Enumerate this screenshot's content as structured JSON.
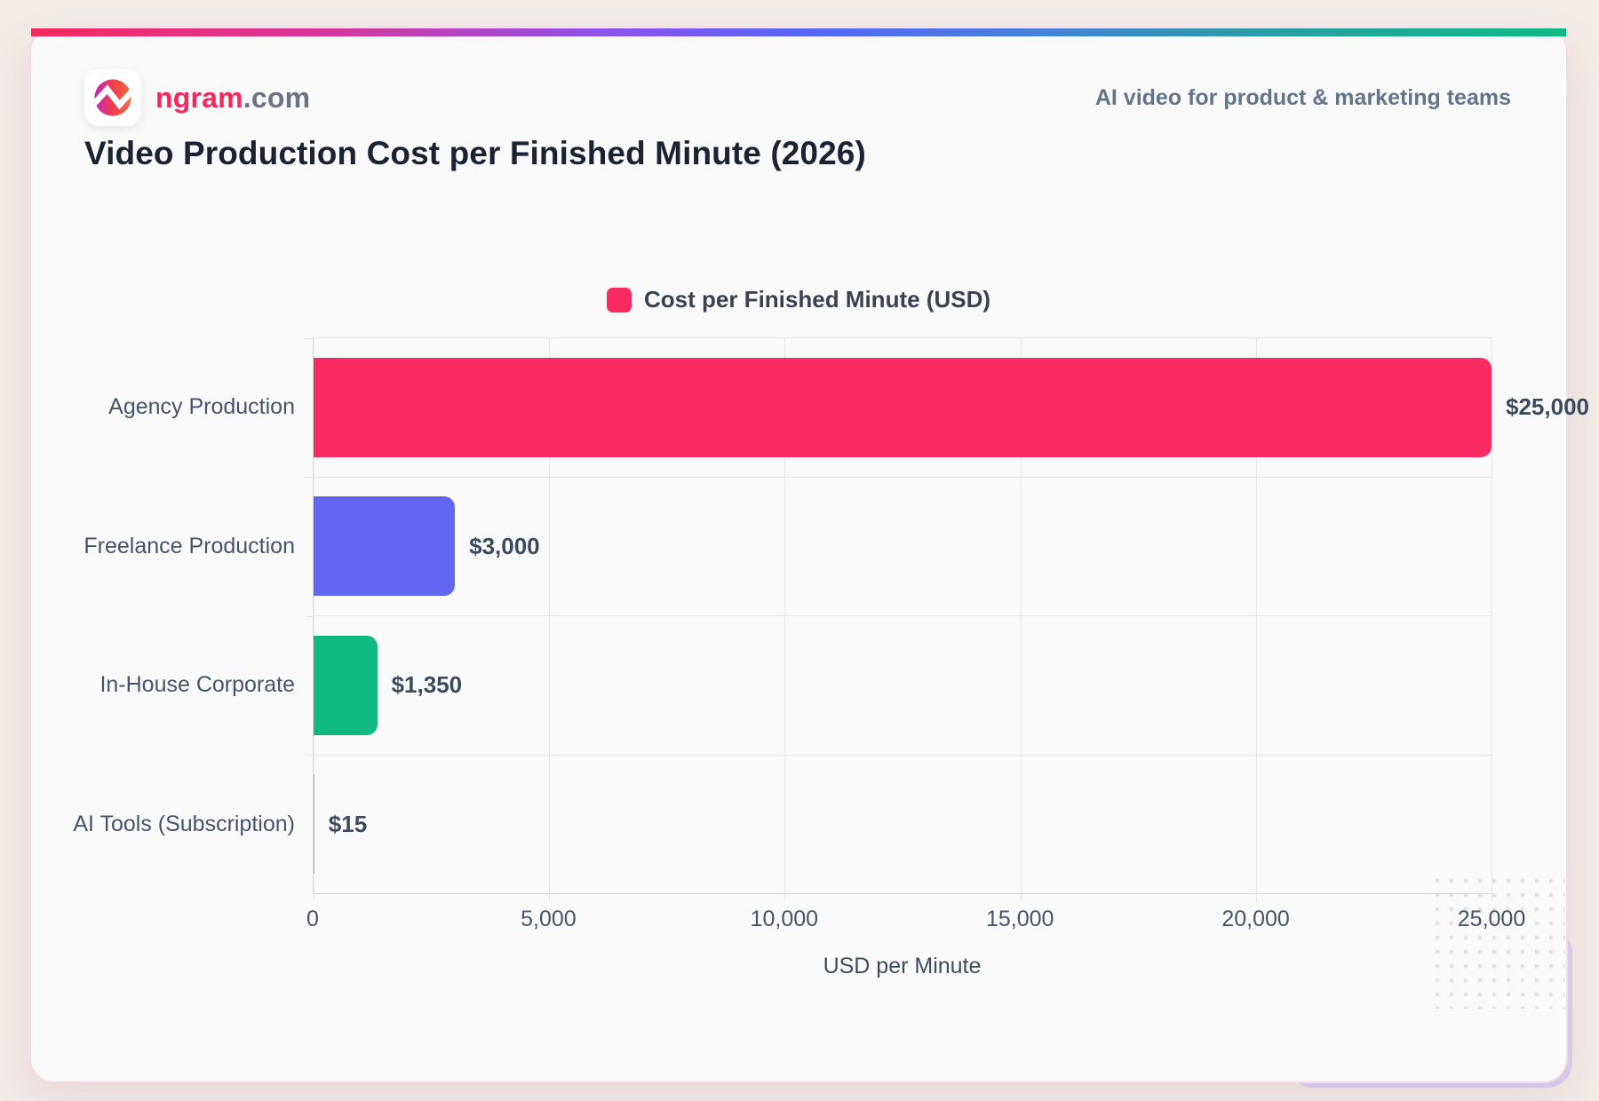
{
  "brand": {
    "logo_text_primary": "ngram",
    "logo_text_secondary": ".com",
    "tagline": "AI video for product & marketing teams"
  },
  "title": "Video Production Cost per Finished Minute (2026)",
  "legend": {
    "label": "Cost per Finished Minute (USD)",
    "swatch_color": "#F92B62"
  },
  "colors": {
    "accent_pink": "#F92B62",
    "accent_indigo": "#6366F1",
    "accent_emerald": "#10B981",
    "card_background": "#FAFAFA",
    "page_background": "#F2EBE6"
  },
  "chart_data": {
    "type": "bar",
    "orientation": "horizontal",
    "title": "Video Production Cost per Finished Minute (2026)",
    "legend_label": "Cost per Finished Minute (USD)",
    "legend_position": "top",
    "grid": true,
    "categories": [
      "Agency Production",
      "Freelance Production",
      "In-House Corporate",
      "AI Tools (Subscription)"
    ],
    "values": [
      25000,
      3000,
      1350,
      15
    ],
    "value_labels": [
      "$25,000",
      "$3,000",
      "$1,350",
      "$15"
    ],
    "bar_colors": [
      "#F92B62",
      "#6366F1",
      "#10B981",
      "#F59E0B"
    ],
    "xlabel": "USD per Minute",
    "ylabel": "",
    "xlim": [
      0,
      25000
    ],
    "xticks": [
      0,
      5000,
      10000,
      15000,
      20000,
      25000
    ],
    "xtick_labels": [
      "0",
      "5,000",
      "10,000",
      "15,000",
      "20,000",
      "25,000"
    ]
  }
}
